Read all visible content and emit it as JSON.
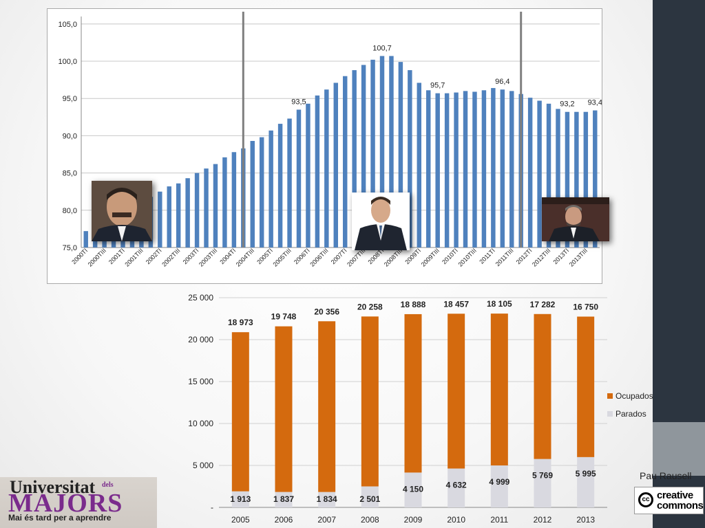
{
  "chart_data": [
    {
      "type": "bar",
      "title": "",
      "xlabel": "",
      "ylabel": "",
      "ylim": [
        75,
        106
      ],
      "y_ticks": [
        "75,0",
        "80,0",
        "85,0",
        "90,0",
        "95,0",
        "100,0",
        "105,0"
      ],
      "grid": true,
      "bar_color": "#4f81bd",
      "categories": [
        "2000TI",
        "2000TII",
        "2000TIII",
        "2000TIV",
        "2001TI",
        "2001TII",
        "2001TIII",
        "2001TIV",
        "2002TI",
        "2002TII",
        "2002TIII",
        "2002TIV",
        "2003TI",
        "2003TII",
        "2003TIII",
        "2003TIV",
        "2004TI",
        "2004TII",
        "2004TIII",
        "2004TIV",
        "2005TI",
        "2005TII",
        "2005TIII",
        "2005TIV",
        "2006TI",
        "2006TII",
        "2006TIII",
        "2006TIV",
        "2007TI",
        "2007TII",
        "2007TIII",
        "2007TIV",
        "2008TI",
        "2008TII",
        "2008TIII",
        "2008TIV",
        "2009TI",
        "2009TII",
        "2009TIII",
        "2009TIV",
        "2010TI",
        "2010TII",
        "2010TIII",
        "2010TIV",
        "2011TI",
        "2011TII",
        "2011TIII",
        "2011TIV",
        "2012TI",
        "2012TII",
        "2012TIII",
        "2012TIV",
        "2013TI",
        "2013TII",
        "2013TIII",
        "2013TIV"
      ],
      "tick_labels": [
        "2000TI",
        "2000TIII",
        "2001TI",
        "2001TIII",
        "2002TI",
        "2002TIII",
        "2003TI",
        "2003TIII",
        "2004TI",
        "2004TIII",
        "2005TI",
        "2005TIII",
        "2006TI",
        "2006TIII",
        "2007TI",
        "2007TIII",
        "2008TI",
        "2008TIII",
        "2009TI",
        "2009TIII",
        "2010TI",
        "2010TIII",
        "2011TI",
        "2011TIII",
        "2012TI",
        "2012TIII",
        "2013TI",
        "2013TIII"
      ],
      "values": [
        77.2,
        77.8,
        78.8,
        79.4,
        80.0,
        80.4,
        81.0,
        81.8,
        82.5,
        83.2,
        83.6,
        84.3,
        85.0,
        85.6,
        86.2,
        87.1,
        87.8,
        88.3,
        89.3,
        89.8,
        90.7,
        91.6,
        92.3,
        93.5,
        94.3,
        95.4,
        96.2,
        97.1,
        98.0,
        98.8,
        99.5,
        100.2,
        100.7,
        100.7,
        99.9,
        98.8,
        97.1,
        96.1,
        95.7,
        95.7,
        95.8,
        96.0,
        95.9,
        96.1,
        96.4,
        96.2,
        96.0,
        95.6,
        95.1,
        94.7,
        94.3,
        93.6,
        93.2,
        93.2,
        93.2,
        93.4
      ],
      "annotations": [
        {
          "category": "2005TIV",
          "label": "93,5"
        },
        {
          "category": "2008TI",
          "label": "100,7"
        },
        {
          "category": "2009TIII",
          "label": "95,7"
        },
        {
          "category": "2011TII",
          "label": "96,4"
        },
        {
          "category": "2013TI",
          "label": "93,2"
        },
        {
          "category": "2013TIV",
          "label": "93,4"
        }
      ],
      "vertical_markers": [
        "2004TII",
        "2011TIV"
      ]
    },
    {
      "type": "bar",
      "stacked": true,
      "title": "",
      "xlabel": "",
      "ylabel": "",
      "ylim": [
        0,
        25000
      ],
      "y_ticks": [
        "-",
        "5 000",
        "10 000",
        "15 000",
        "20 000",
        "25 000"
      ],
      "grid": true,
      "legend_position": "right",
      "categories": [
        "2005",
        "2006",
        "2007",
        "2008",
        "2009",
        "2010",
        "2011",
        "2012",
        "2013"
      ],
      "series": [
        {
          "name": "Parados",
          "color": "#d9d9e0",
          "values": [
            1913,
            1837,
            1834,
            2501,
            4150,
            4632,
            4999,
            5769,
            5995
          ],
          "labels": [
            "1 913",
            "1 837",
            "1 834",
            "2 501",
            "4 150",
            "4 632",
            "4 999",
            "5 769",
            "5 995"
          ]
        },
        {
          "name": "Ocupados",
          "color": "#d46a0e",
          "values": [
            18973,
            19748,
            20356,
            20258,
            18888,
            18457,
            18105,
            17282,
            16750
          ],
          "labels": [
            "18 973",
            "19 748",
            "20 356",
            "20 258",
            "18 888",
            "18 457",
            "18 105",
            "17 282",
            "16 750"
          ]
        }
      ],
      "legend_order": [
        "Ocupados",
        "Parados"
      ]
    }
  ],
  "author": "Pau Rausell",
  "cc_logo": {
    "line1": "creative",
    "line2": "commons",
    "mark": "cc"
  },
  "univ_logo": {
    "line1": "Universitat",
    "dels": "dels",
    "line2": "MAJORS",
    "tagline": "Mai és tard per a aprendre"
  }
}
